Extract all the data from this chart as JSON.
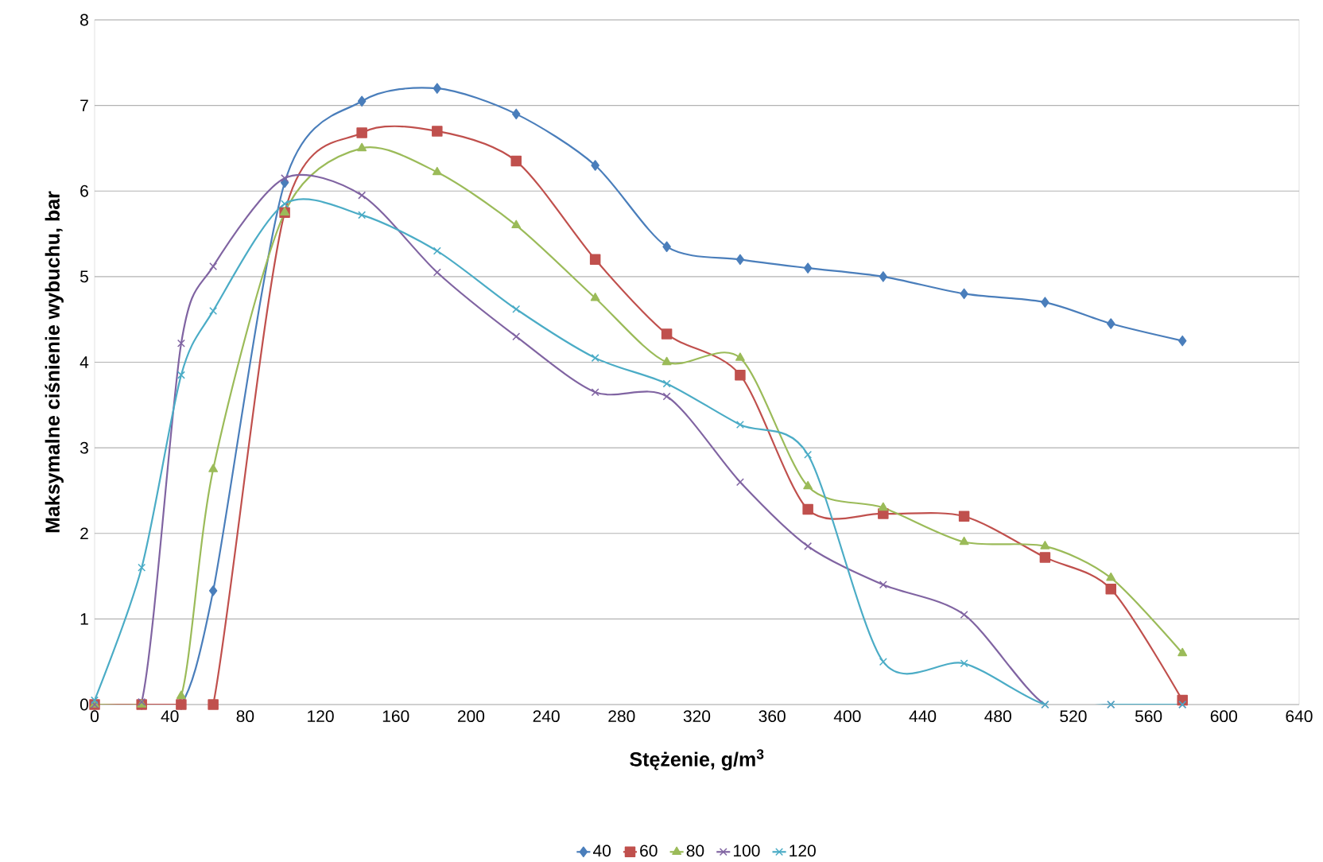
{
  "chart_data": {
    "type": "line",
    "xlabel": "Stężenie, g/m$^{3}$",
    "ylabel": "Maksymalne ciśnienie wybuchu, bar",
    "x": [
      0,
      25,
      46,
      63,
      101,
      142,
      182,
      224,
      266,
      304,
      343,
      379,
      419,
      462,
      505,
      540,
      578
    ],
    "xlim": [
      0,
      640
    ],
    "xticks": [
      0,
      40,
      80,
      120,
      160,
      200,
      240,
      280,
      320,
      360,
      400,
      440,
      480,
      520,
      560,
      600,
      640
    ],
    "ylim": [
      0,
      8
    ],
    "yticks": [
      0,
      1,
      2,
      3,
      4,
      5,
      6,
      7,
      8
    ],
    "grid": "y",
    "legend": "bottom",
    "line_style": "solid",
    "series": [
      {
        "name": "40",
        "color": "#4a7ebb",
        "marker": "diamond",
        "values": [
          0,
          0,
          0,
          1.33,
          6.1,
          7.05,
          7.2,
          6.9,
          6.3,
          5.35,
          5.2,
          5.1,
          5.0,
          4.8,
          4.7,
          4.45,
          4.25
        ]
      },
      {
        "name": "60",
        "color": "#c0504d",
        "marker": "square",
        "values": [
          0,
          0,
          0,
          0,
          5.75,
          6.68,
          6.7,
          6.35,
          5.2,
          4.33,
          3.85,
          2.28,
          2.23,
          2.2,
          1.72,
          1.35,
          0.05
        ]
      },
      {
        "name": "80",
        "color": "#9bbb59",
        "marker": "triangle",
        "values": [
          0,
          0,
          0.1,
          2.75,
          5.75,
          6.5,
          6.22,
          5.6,
          4.75,
          4.0,
          4.05,
          2.55,
          2.3,
          1.9,
          1.85,
          1.48,
          0.6
        ]
      },
      {
        "name": "100",
        "color": "#8064a2",
        "marker": "cross",
        "values": [
          0,
          0.03,
          4.22,
          5.12,
          6.15,
          5.95,
          5.05,
          4.3,
          3.65,
          3.6,
          2.6,
          1.85,
          1.4,
          1.05,
          0,
          0,
          0
        ]
      },
      {
        "name": "120",
        "color": "#4bacc6",
        "marker": "cross",
        "values": [
          0.05,
          1.6,
          3.85,
          4.6,
          5.85,
          5.72,
          5.3,
          4.62,
          4.05,
          3.75,
          3.27,
          2.92,
          0.5,
          0.48,
          0,
          0,
          0
        ]
      }
    ]
  }
}
